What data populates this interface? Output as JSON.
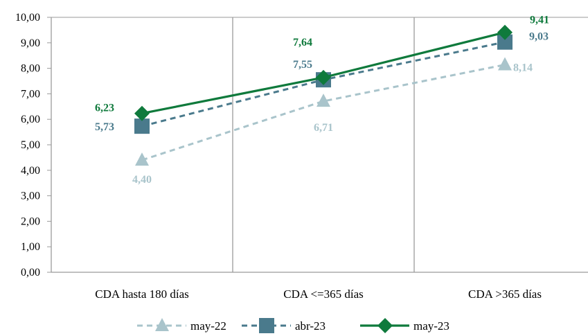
{
  "chart_data": {
    "type": "line",
    "categories": [
      "CDA hasta 180 días",
      "CDA <=365 días",
      "CDA >365 días"
    ],
    "ylim": [
      0,
      10
    ],
    "yticks": [
      "0,00",
      "1,00",
      "2,00",
      "3,00",
      "4,00",
      "5,00",
      "6,00",
      "7,00",
      "8,00",
      "9,00",
      "10,00"
    ],
    "grid": "vertical separators between categories",
    "legend": "bottom",
    "series": [
      {
        "name": "may-22",
        "values": [
          4.4,
          6.71,
          8.14
        ],
        "labels": [
          "4,40",
          "6,71",
          "8,14"
        ],
        "color": "#a9c4cb",
        "marker": "triangle",
        "dash": "dashed"
      },
      {
        "name": "abr-23",
        "values": [
          5.73,
          7.55,
          9.03
        ],
        "labels": [
          "5,73",
          "7,55",
          "9,03"
        ],
        "color": "#4a7a8c",
        "marker": "square",
        "dash": "dashed"
      },
      {
        "name": "may-23",
        "values": [
          6.23,
          7.64,
          9.41
        ],
        "labels": [
          "6,23",
          "7,64",
          "9,41"
        ],
        "color": "#0f7a3c",
        "marker": "diamond",
        "dash": "solid"
      }
    ]
  }
}
